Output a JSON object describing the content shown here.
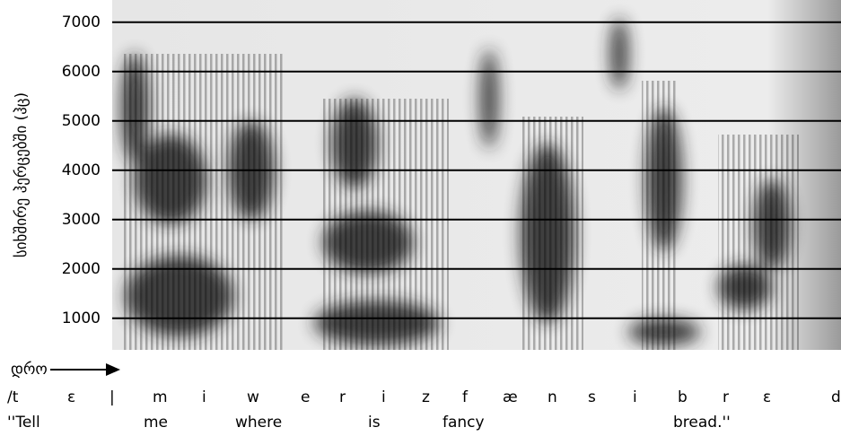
{
  "chart_data": {
    "type": "spectrogram",
    "ylabel": "სიხშირე ჰერცებში (ჰც)",
    "xlabel": "დრო",
    "ylim": [
      360,
      7450
    ],
    "yticks": [
      1000,
      2000,
      3000,
      4000,
      5000,
      6000,
      7000
    ],
    "grid": true,
    "phonemes": [
      "/t",
      "ɛ",
      "|",
      "m",
      "i",
      "w",
      "e",
      "r",
      "i",
      "z",
      "f",
      "æ",
      "n",
      "s",
      "i",
      "b",
      "r",
      "ɛ",
      "d"
    ],
    "words": [
      "''Tell",
      "me",
      "where",
      "is",
      "fancy",
      "bread.''"
    ]
  }
}
